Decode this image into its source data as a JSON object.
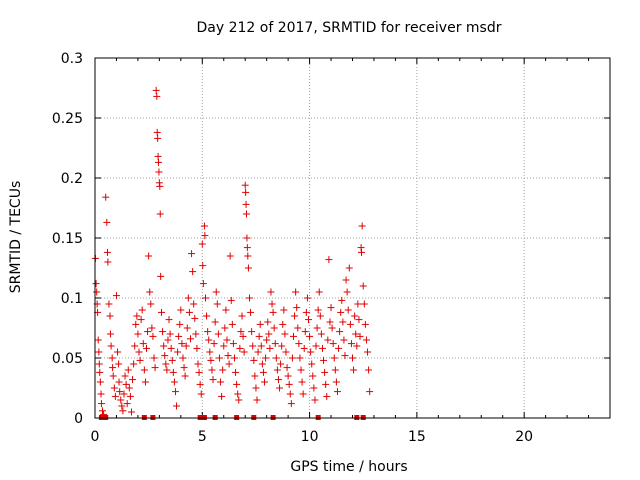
{
  "chart_data": {
    "type": "scatter",
    "title": "Day 212 of 2017, SRMTID for receiver msdr",
    "xlabel": "GPS time / hours",
    "ylabel": "SRMTID / TECUs",
    "xlim": [
      0,
      24
    ],
    "ylim": [
      0,
      0.3
    ],
    "x_ticks": [
      0,
      5,
      10,
      15,
      20
    ],
    "x_tick_labels": [
      "0",
      "5",
      "10",
      "15",
      "20"
    ],
    "y_ticks": [
      0,
      0.05,
      0.1,
      0.15,
      0.2,
      0.25,
      0.3
    ],
    "y_tick_labels": [
      "0",
      "0.05",
      "0.1",
      "0.15",
      "0.2",
      "0.25",
      "0.3"
    ],
    "grid": true,
    "marker": "+",
    "color": "#e00000",
    "series": [
      {
        "name": "SRMTID",
        "points": [
          [
            0.02,
            0.133
          ],
          [
            0.05,
            0.112
          ],
          [
            0.08,
            0.105
          ],
          [
            0.1,
            0.095
          ],
          [
            0.12,
            0.088
          ],
          [
            0.15,
            0.065
          ],
          [
            0.18,
            0.055
          ],
          [
            0.2,
            0.045
          ],
          [
            0.22,
            0.038
          ],
          [
            0.25,
            0.03
          ],
          [
            0.28,
            0.02
          ],
          [
            0.3,
            0.012
          ],
          [
            0.35,
            0.006
          ],
          [
            0.4,
            0.003
          ],
          [
            0.5,
            0.184
          ],
          [
            0.55,
            0.163
          ],
          [
            0.58,
            0.138
          ],
          [
            0.6,
            0.13
          ],
          [
            0.65,
            0.095
          ],
          [
            0.7,
            0.085
          ],
          [
            0.72,
            0.07
          ],
          [
            0.75,
            0.06
          ],
          [
            0.8,
            0.05
          ],
          [
            0.82,
            0.042
          ],
          [
            0.85,
            0.035
          ],
          [
            0.9,
            0.025
          ],
          [
            0.95,
            0.018
          ],
          [
            1.0,
            0.102
          ],
          [
            1.05,
            0.055
          ],
          [
            1.1,
            0.045
          ],
          [
            1.12,
            0.03
          ],
          [
            1.15,
            0.022
          ],
          [
            1.2,
            0.015
          ],
          [
            1.25,
            0.01
          ],
          [
            1.3,
            0.006
          ],
          [
            1.35,
            0.02
          ],
          [
            1.4,
            0.035
          ],
          [
            1.45,
            0.028
          ],
          [
            1.5,
            0.012
          ],
          [
            1.55,
            0.04
          ],
          [
            1.6,
            0.025
          ],
          [
            1.65,
            0.018
          ],
          [
            1.7,
            0.005
          ],
          [
            1.75,
            0.032
          ],
          [
            1.8,
            0.045
          ],
          [
            1.85,
            0.06
          ],
          [
            1.9,
            0.078
          ],
          [
            1.95,
            0.085
          ],
          [
            2.0,
            0.07
          ],
          [
            2.05,
            0.055
          ],
          [
            2.1,
            0.048
          ],
          [
            2.15,
            0.082
          ],
          [
            2.2,
            0.09
          ],
          [
            2.25,
            0.062
          ],
          [
            2.3,
            0.04
          ],
          [
            2.35,
            0.03
          ],
          [
            2.4,
            0.058
          ],
          [
            2.45,
            0.072
          ],
          [
            2.5,
            0.135
          ],
          [
            2.55,
            0.105
          ],
          [
            2.6,
            0.095
          ],
          [
            2.65,
            0.075
          ],
          [
            2.7,
            0.068
          ],
          [
            2.75,
            0.05
          ],
          [
            2.8,
            0.042
          ],
          [
            2.85,
            0.273
          ],
          [
            2.88,
            0.268
          ],
          [
            2.9,
            0.238
          ],
          [
            2.92,
            0.233
          ],
          [
            2.94,
            0.218
          ],
          [
            2.96,
            0.213
          ],
          [
            2.98,
            0.205
          ],
          [
            3.0,
            0.196
          ],
          [
            3.02,
            0.193
          ],
          [
            3.04,
            0.17
          ],
          [
            3.06,
            0.118
          ],
          [
            3.1,
            0.088
          ],
          [
            3.15,
            0.072
          ],
          [
            3.2,
            0.06
          ],
          [
            3.25,
            0.052
          ],
          [
            3.3,
            0.045
          ],
          [
            3.35,
            0.04
          ],
          [
            3.4,
            0.065
          ],
          [
            3.45,
            0.082
          ],
          [
            3.5,
            0.07
          ],
          [
            3.55,
            0.058
          ],
          [
            3.6,
            0.048
          ],
          [
            3.65,
            0.038
          ],
          [
            3.7,
            0.03
          ],
          [
            3.75,
            0.022
          ],
          [
            3.8,
            0.01
          ],
          [
            3.85,
            0.055
          ],
          [
            3.9,
            0.068
          ],
          [
            3.95,
            0.078
          ],
          [
            4.0,
            0.09
          ],
          [
            4.05,
            0.062
          ],
          [
            4.1,
            0.05
          ],
          [
            4.15,
            0.042
          ],
          [
            4.2,
            0.035
          ],
          [
            4.25,
            0.06
          ],
          [
            4.3,
            0.075
          ],
          [
            4.35,
            0.1
          ],
          [
            4.4,
            0.088
          ],
          [
            4.45,
            0.066
          ],
          [
            4.5,
            0.137
          ],
          [
            4.55,
            0.122
          ],
          [
            4.6,
            0.095
          ],
          [
            4.65,
            0.083
          ],
          [
            4.7,
            0.07
          ],
          [
            4.75,
            0.058
          ],
          [
            4.8,
            0.045
          ],
          [
            4.85,
            0.038
          ],
          [
            4.9,
            0.028
          ],
          [
            4.95,
            0.02
          ],
          [
            5.0,
            0.145
          ],
          [
            5.02,
            0.127
          ],
          [
            5.05,
            0.112
          ],
          [
            5.1,
            0.16
          ],
          [
            5.12,
            0.152
          ],
          [
            5.15,
            0.1
          ],
          [
            5.2,
            0.085
          ],
          [
            5.25,
            0.072
          ],
          [
            5.3,
            0.065
          ],
          [
            5.35,
            0.055
          ],
          [
            5.4,
            0.048
          ],
          [
            5.45,
            0.04
          ],
          [
            5.5,
            0.032
          ],
          [
            5.55,
            0.062
          ],
          [
            5.6,
            0.08
          ],
          [
            5.65,
            0.105
          ],
          [
            5.7,
            0.095
          ],
          [
            5.75,
            0.07
          ],
          [
            5.8,
            0.05
          ],
          [
            5.85,
            0.03
          ],
          [
            5.9,
            0.018
          ],
          [
            5.95,
            0.04
          ],
          [
            6.0,
            0.06
          ],
          [
            6.05,
            0.075
          ],
          [
            6.1,
            0.09
          ],
          [
            6.15,
            0.065
          ],
          [
            6.2,
            0.052
          ],
          [
            6.25,
            0.045
          ],
          [
            6.3,
            0.135
          ],
          [
            6.35,
            0.098
          ],
          [
            6.4,
            0.078
          ],
          [
            6.45,
            0.062
          ],
          [
            6.5,
            0.05
          ],
          [
            6.55,
            0.038
          ],
          [
            6.6,
            0.028
          ],
          [
            6.65,
            0.02
          ],
          [
            6.7,
            0.015
          ],
          [
            6.75,
            0.058
          ],
          [
            6.8,
            0.072
          ],
          [
            6.85,
            0.085
          ],
          [
            6.9,
            0.068
          ],
          [
            6.95,
            0.055
          ],
          [
            7.0,
            0.194
          ],
          [
            7.02,
            0.188
          ],
          [
            7.04,
            0.178
          ],
          [
            7.06,
            0.17
          ],
          [
            7.08,
            0.15
          ],
          [
            7.1,
            0.142
          ],
          [
            7.12,
            0.135
          ],
          [
            7.15,
            0.125
          ],
          [
            7.2,
            0.1
          ],
          [
            7.25,
            0.088
          ],
          [
            7.3,
            0.072
          ],
          [
            7.35,
            0.06
          ],
          [
            7.4,
            0.048
          ],
          [
            7.45,
            0.035
          ],
          [
            7.5,
            0.025
          ],
          [
            7.55,
            0.015
          ],
          [
            7.6,
            0.055
          ],
          [
            7.65,
            0.068
          ],
          [
            7.7,
            0.078
          ],
          [
            7.75,
            0.06
          ],
          [
            7.8,
            0.045
          ],
          [
            7.85,
            0.038
          ],
          [
            7.9,
            0.03
          ],
          [
            7.95,
            0.05
          ],
          [
            8.0,
            0.065
          ],
          [
            8.05,
            0.08
          ],
          [
            8.1,
            0.07
          ],
          [
            8.15,
            0.058
          ],
          [
            8.2,
            0.105
          ],
          [
            8.25,
            0.095
          ],
          [
            8.3,
            0.088
          ],
          [
            8.35,
            0.075
          ],
          [
            8.4,
            0.062
          ],
          [
            8.45,
            0.05
          ],
          [
            8.5,
            0.04
          ],
          [
            8.55,
            0.032
          ],
          [
            8.6,
            0.025
          ],
          [
            8.65,
            0.045
          ],
          [
            8.7,
            0.06
          ],
          [
            8.75,
            0.078
          ],
          [
            8.8,
            0.09
          ],
          [
            8.85,
            0.07
          ],
          [
            8.9,
            0.055
          ],
          [
            8.95,
            0.042
          ],
          [
            9.0,
            0.035
          ],
          [
            9.05,
            0.028
          ],
          [
            9.1,
            0.02
          ],
          [
            9.15,
            0.012
          ],
          [
            9.2,
            0.05
          ],
          [
            9.25,
            0.068
          ],
          [
            9.3,
            0.085
          ],
          [
            9.35,
            0.105
          ],
          [
            9.4,
            0.092
          ],
          [
            9.45,
            0.075
          ],
          [
            9.5,
            0.062
          ],
          [
            9.55,
            0.05
          ],
          [
            9.6,
            0.04
          ],
          [
            9.65,
            0.03
          ],
          [
            9.7,
            0.02
          ],
          [
            9.75,
            0.058
          ],
          [
            9.8,
            0.072
          ],
          [
            9.85,
            0.088
          ],
          [
            9.9,
            0.1
          ],
          [
            9.95,
            0.082
          ],
          [
            10.0,
            0.068
          ],
          [
            10.05,
            0.055
          ],
          [
            10.1,
            0.045
          ],
          [
            10.15,
            0.035
          ],
          [
            10.2,
            0.025
          ],
          [
            10.25,
            0.015
          ],
          [
            10.3,
            0.06
          ],
          [
            10.35,
            0.075
          ],
          [
            10.4,
            0.09
          ],
          [
            10.45,
            0.105
          ],
          [
            10.5,
            0.085
          ],
          [
            10.55,
            0.07
          ],
          [
            10.6,
            0.058
          ],
          [
            10.65,
            0.048
          ],
          [
            10.7,
            0.038
          ],
          [
            10.75,
            0.028
          ],
          [
            10.8,
            0.018
          ],
          [
            10.85,
            0.065
          ],
          [
            10.9,
            0.132
          ],
          [
            10.95,
            0.08
          ],
          [
            11.0,
            0.092
          ],
          [
            11.05,
            0.075
          ],
          [
            11.1,
            0.062
          ],
          [
            11.15,
            0.05
          ],
          [
            11.2,
            0.04
          ],
          [
            11.25,
            0.03
          ],
          [
            11.3,
            0.022
          ],
          [
            11.35,
            0.058
          ],
          [
            11.4,
            0.072
          ],
          [
            11.45,
            0.088
          ],
          [
            11.5,
            0.098
          ],
          [
            11.55,
            0.08
          ],
          [
            11.6,
            0.065
          ],
          [
            11.65,
            0.052
          ],
          [
            11.7,
            0.115
          ],
          [
            11.75,
            0.105
          ],
          [
            11.8,
            0.09
          ],
          [
            11.85,
            0.125
          ],
          [
            11.9,
            0.078
          ],
          [
            11.95,
            0.062
          ],
          [
            12.0,
            0.05
          ],
          [
            12.05,
            0.04
          ],
          [
            12.1,
            0.085
          ],
          [
            12.15,
            0.07
          ],
          [
            12.2,
            0.06
          ],
          [
            12.25,
            0.095
          ],
          [
            12.3,
            0.082
          ],
          [
            12.35,
            0.068
          ],
          [
            12.4,
            0.142
          ],
          [
            12.42,
            0.138
          ],
          [
            12.45,
            0.16
          ],
          [
            12.5,
            0.11
          ],
          [
            12.55,
            0.095
          ],
          [
            12.6,
            0.078
          ],
          [
            12.65,
            0.065
          ],
          [
            12.7,
            0.055
          ],
          [
            12.75,
            0.04
          ],
          [
            12.8,
            0.022
          ]
        ]
      }
    ],
    "gap_markers_x": [
      0.3,
      0.5,
      2.3,
      2.7,
      4.9,
      5.1,
      5.6,
      6.6,
      7.4,
      8.3,
      10.4,
      12.2,
      12.5
    ]
  }
}
